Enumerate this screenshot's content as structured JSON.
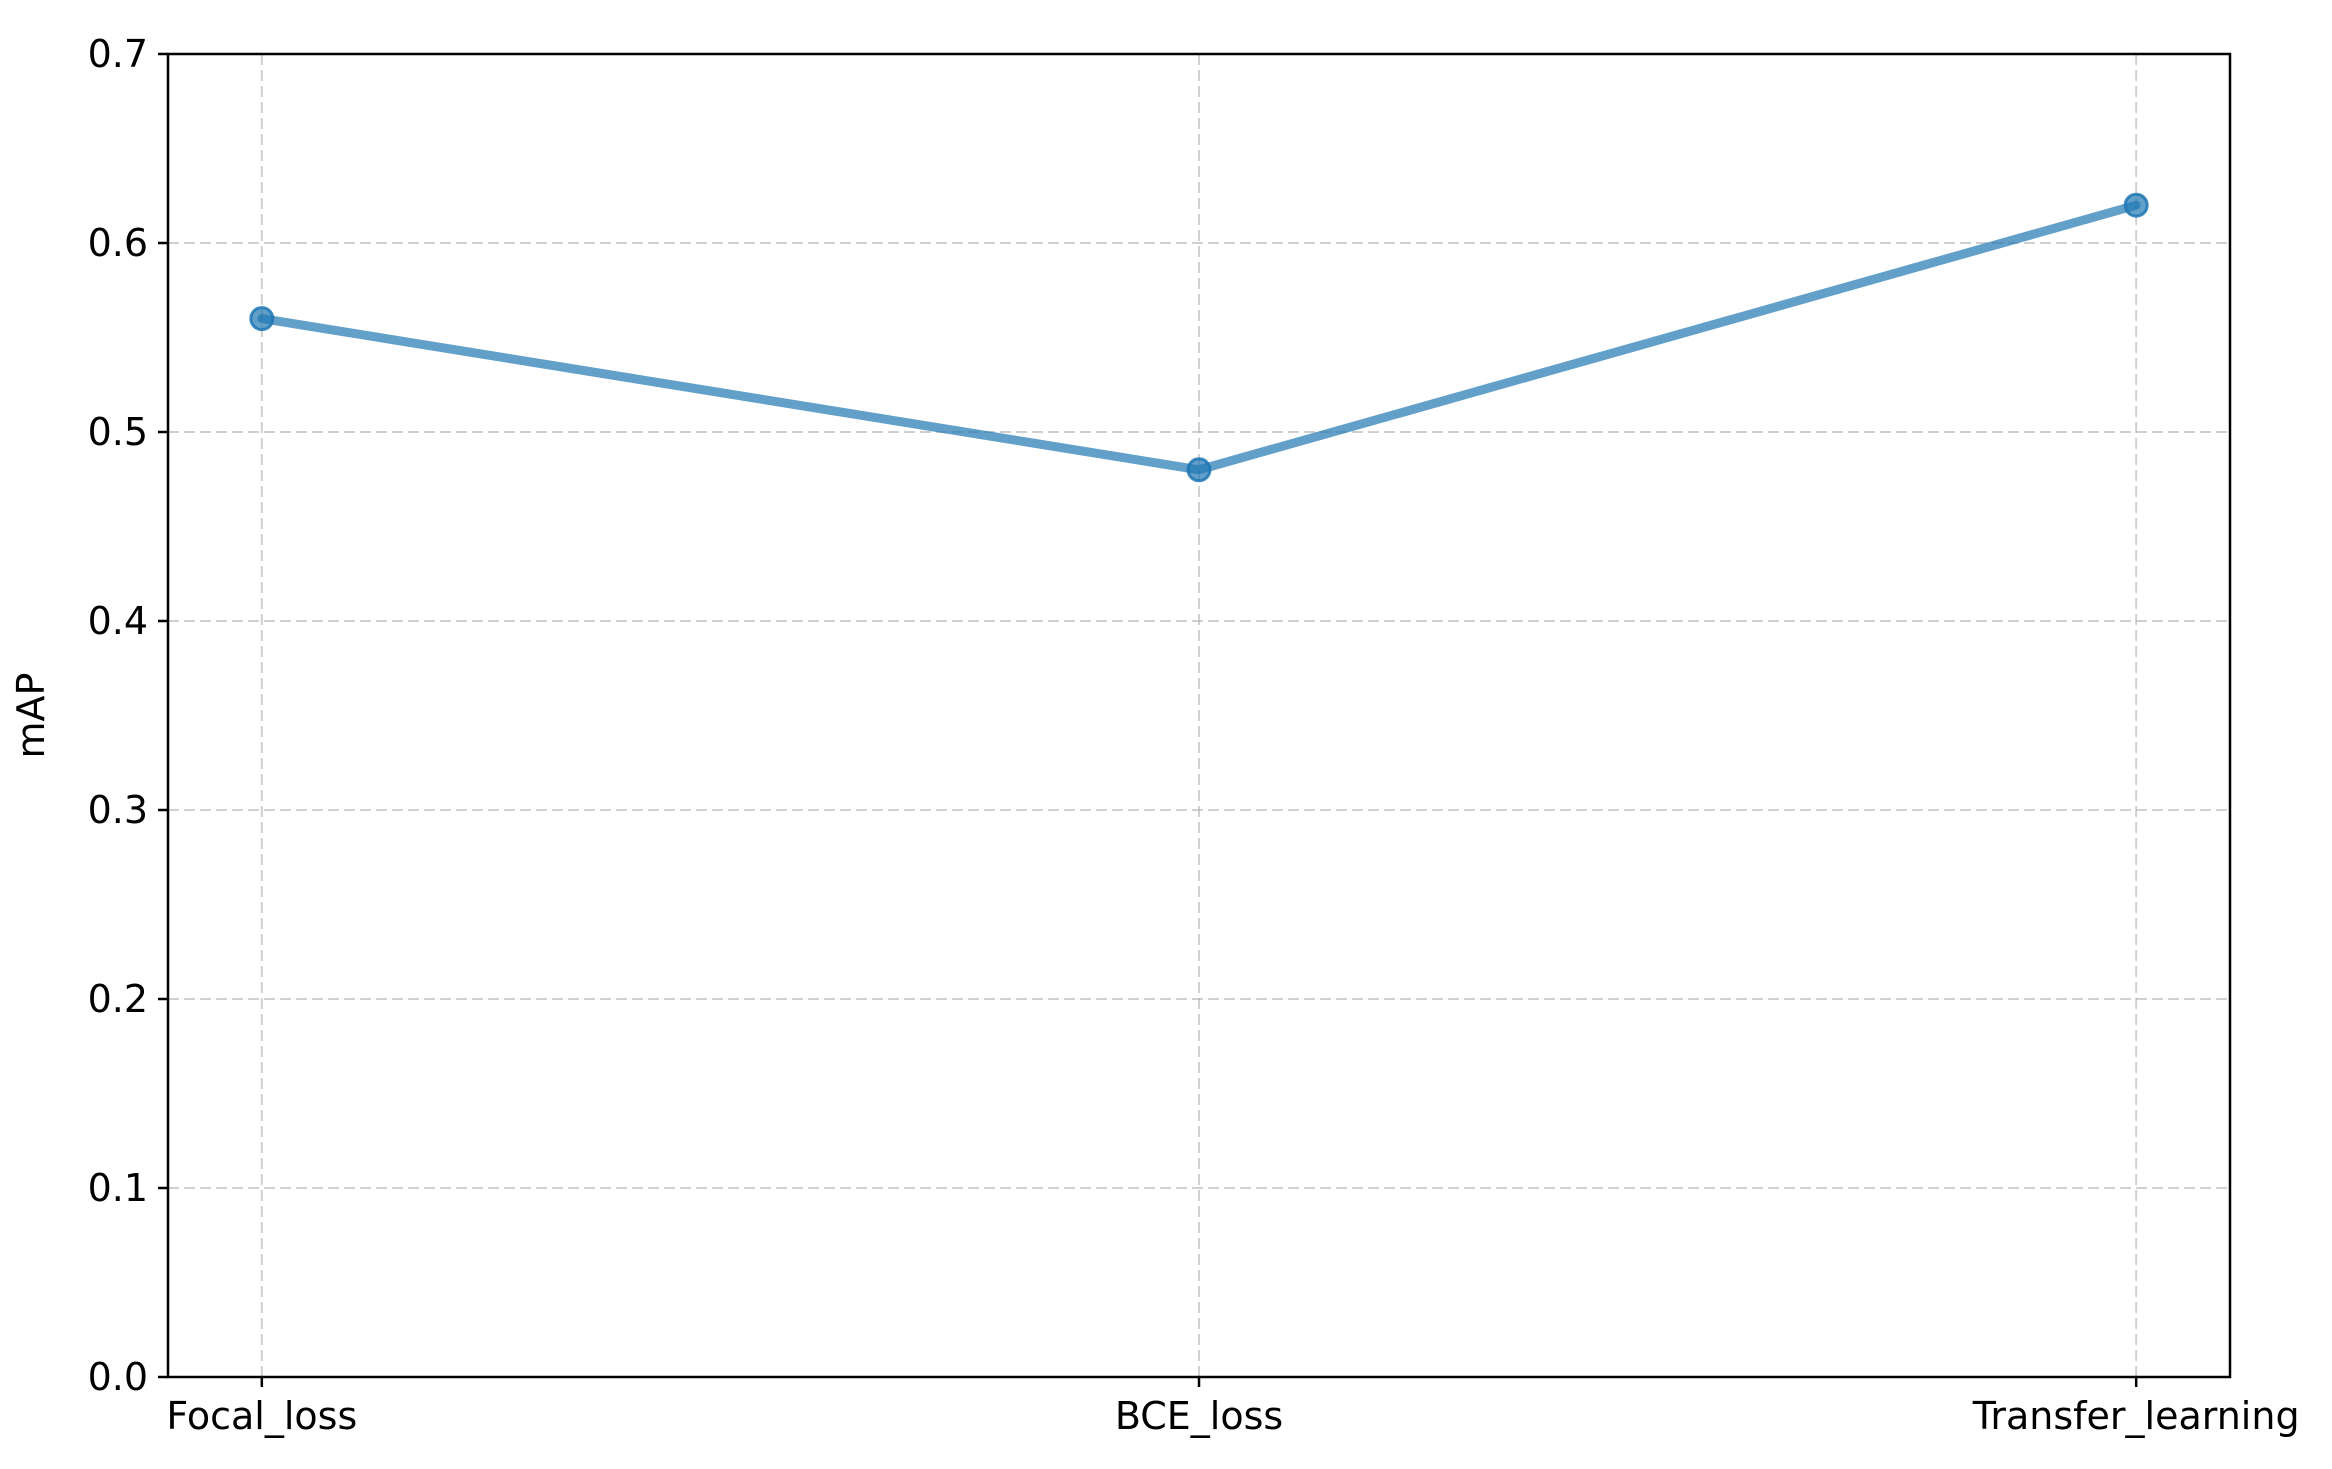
{
  "chart_data": {
    "type": "line",
    "title": "",
    "xlabel": "",
    "ylabel": "mAP",
    "categories": [
      "Focal_loss",
      "BCE_loss",
      "Transfer_learning"
    ],
    "series": [
      {
        "values": [
          0.56,
          0.48,
          0.62
        ],
        "color": "#1f77b4"
      }
    ],
    "ylim": [
      0.0,
      0.7
    ],
    "yticks": [
      0.0,
      0.1,
      0.2,
      0.3,
      0.4,
      0.5,
      0.6,
      0.7
    ],
    "ytick_labels": [
      "0.0",
      "0.1",
      "0.2",
      "0.3",
      "0.4",
      "0.5",
      "0.6",
      "0.7"
    ],
    "grid": true,
    "legend": "none"
  }
}
